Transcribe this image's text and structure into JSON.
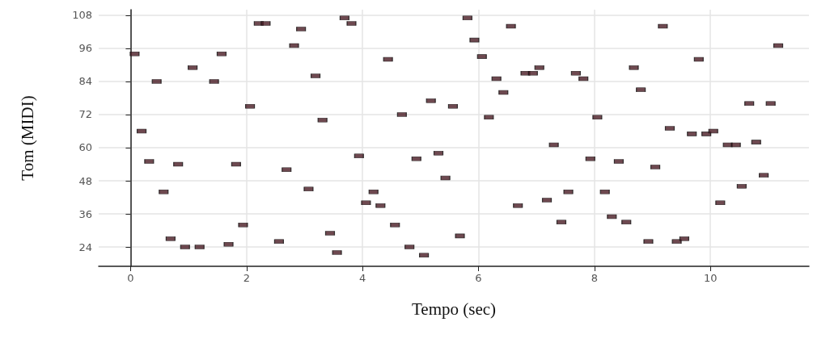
{
  "chart_data": {
    "type": "scatter",
    "xlabel": "Tempo (sec)",
    "ylabel": "Tom (MIDI)",
    "x": [
      0.07,
      0.19,
      0.32,
      0.45,
      0.57,
      0.69,
      0.82,
      0.94,
      1.07,
      1.19,
      1.44,
      1.57,
      1.69,
      1.82,
      1.94,
      2.06,
      2.21,
      2.33,
      2.56,
      2.69,
      2.82,
      2.94,
      3.07,
      3.19,
      3.31,
      3.44,
      3.56,
      3.69,
      3.81,
      3.94,
      4.06,
      4.19,
      4.31,
      4.44,
      4.56,
      4.68,
      4.81,
      4.93,
      5.06,
      5.18,
      5.31,
      5.43,
      5.56,
      5.68,
      5.81,
      5.93,
      6.06,
      6.18,
      6.31,
      6.43,
      6.56,
      6.68,
      6.81,
      6.94,
      7.05,
      7.18,
      7.3,
      7.43,
      7.55,
      7.68,
      7.81,
      7.93,
      8.05,
      8.18,
      8.3,
      8.42,
      8.55,
      8.68,
      8.8,
      8.93,
      9.05,
      9.18,
      9.3,
      9.42,
      9.55,
      9.68,
      9.8,
      9.93,
      10.05,
      10.17,
      10.3,
      10.44,
      10.54,
      10.67,
      10.79,
      10.92,
      11.04,
      11.17
    ],
    "values": [
      94,
      66,
      55,
      84,
      44,
      27,
      54,
      24,
      89,
      24,
      84,
      94,
      25,
      54,
      32,
      75,
      105,
      105,
      26,
      52,
      97,
      103,
      45,
      86,
      70,
      29,
      22,
      107,
      105,
      57,
      40,
      44,
      39,
      92,
      32,
      72,
      24,
      56,
      21,
      77,
      58,
      49,
      75,
      28,
      107,
      99,
      93,
      71,
      85,
      80,
      104,
      39,
      87,
      87,
      89,
      41,
      61,
      33,
      44,
      87,
      85,
      56,
      71,
      44,
      35,
      55,
      33,
      89,
      81,
      26,
      53,
      104,
      67,
      26,
      27,
      65,
      92,
      65,
      66,
      40,
      61,
      61,
      46,
      76,
      62,
      50,
      76,
      97
    ],
    "color": "#4a1c24",
    "marker": "square",
    "xlim": [
      -0.55,
      11.7
    ],
    "xticks": [
      0,
      2,
      4,
      6,
      8,
      10
    ],
    "ylim": [
      17,
      110
    ],
    "yticks": [
      24,
      36,
      48,
      60,
      72,
      84,
      96,
      108
    ],
    "grid": true
  }
}
